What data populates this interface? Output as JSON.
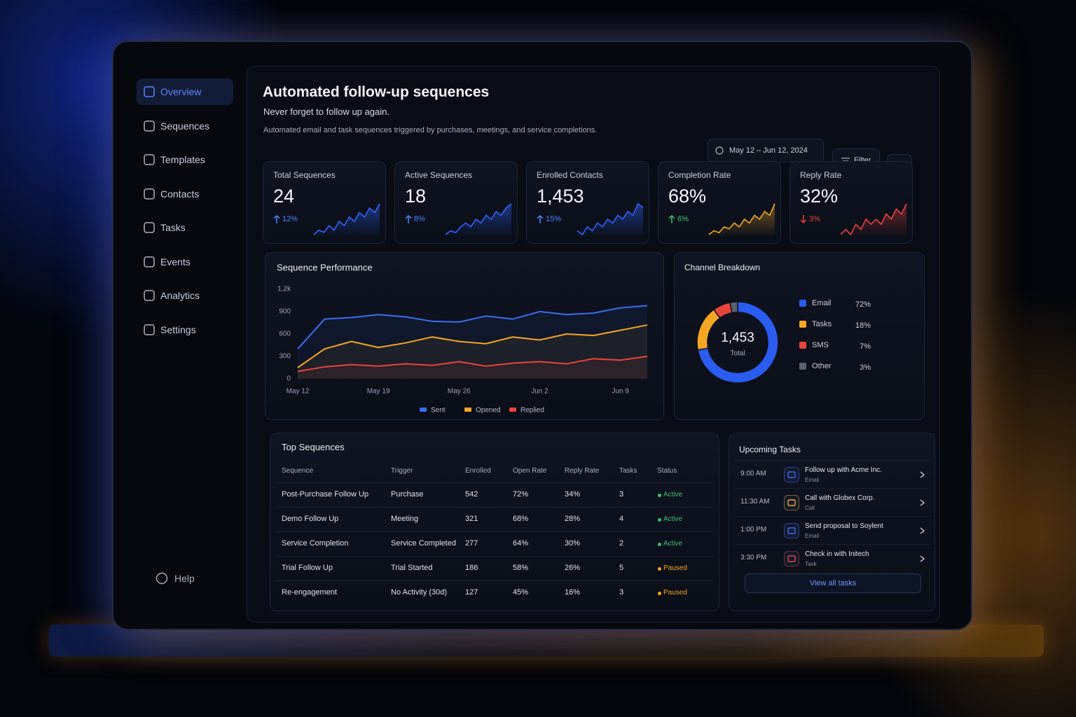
{
  "sidebar": {
    "items": [
      "Overview",
      "Sequences",
      "Templates",
      "Contacts",
      "Tasks",
      "Events",
      "Analytics",
      "Settings"
    ],
    "help": "Help"
  },
  "header": {
    "title": "Automated follow-up sequences",
    "subtitle": "Never forget to follow up again.",
    "description": "Automated email and task sequences triggered by purchases, meetings, and service completions.",
    "date_range": "May 12 – Jun 12, 2024",
    "filter": "Filter",
    "more": "..."
  },
  "kpis": [
    {
      "label": "Total Sequences",
      "value": "24",
      "change": "12%",
      "direction": "up",
      "color": "#2f63ff",
      "trend_color": "#4d86ff",
      "spark": [
        2,
        3,
        2.5,
        4,
        3,
        5,
        4,
        6,
        5,
        7,
        6,
        8,
        7,
        9
      ]
    },
    {
      "label": "Active Sequences",
      "value": "18",
      "change": "8%",
      "direction": "up",
      "color": "#2f63ff",
      "trend_color": "#4d86ff",
      "spark": [
        1,
        2,
        1.5,
        3,
        4,
        3,
        5,
        4,
        6,
        5,
        7,
        6,
        8,
        9
      ]
    },
    {
      "label": "Enrolled Contacts",
      "value": "1,453",
      "change": "15%",
      "direction": "up",
      "color": "#2f63ff",
      "trend_color": "#4d86ff",
      "spark": [
        2,
        1,
        3,
        2,
        4,
        3,
        5,
        4,
        6,
        5,
        7,
        6,
        9,
        8
      ]
    },
    {
      "label": "Completion Rate",
      "value": "68%",
      "change": "6%",
      "direction": "up",
      "color": "#f5a623",
      "trend_color": "#3fbf6f",
      "spark": [
        1,
        2,
        1.5,
        3,
        2.5,
        4,
        3,
        5,
        4,
        6,
        5,
        7,
        6,
        9
      ]
    },
    {
      "label": "Reply Rate",
      "value": "32%",
      "change": "3%",
      "direction": "down",
      "color": "#e8443a",
      "trend_color": "#e8443a",
      "spark": [
        2,
        3,
        2,
        4,
        3,
        5,
        4,
        5,
        4,
        6,
        5,
        7,
        6,
        8
      ]
    }
  ],
  "performance": {
    "type": "line",
    "title": "Sequence Performance",
    "categories": [
      "May 12",
      null,
      null,
      "May 19",
      null,
      null,
      "May 26",
      null,
      null,
      "Jun 2",
      null,
      null,
      "Jun 9",
      null
    ],
    "series": [
      {
        "name": "Sent",
        "color": "#3a6df0",
        "values": [
          400,
          800,
          820,
          860,
          830,
          770,
          760,
          840,
          800,
          900,
          860,
          880,
          950,
          980
        ]
      },
      {
        "name": "Opened",
        "color": "#f5a623",
        "values": [
          150,
          400,
          500,
          420,
          480,
          560,
          500,
          470,
          560,
          520,
          600,
          580,
          650,
          720
        ]
      },
      {
        "name": "Replied",
        "color": "#e8443a",
        "values": [
          100,
          160,
          190,
          170,
          200,
          180,
          230,
          170,
          210,
          230,
          200,
          270,
          250,
          300
        ]
      }
    ],
    "ylim": [
      0,
      1200
    ],
    "yticks": [
      0,
      300,
      600,
      900,
      {
        "value": 1200,
        "label": "1.2k"
      }
    ],
    "grid": false
  },
  "channels": {
    "type": "pie",
    "title": "Channel Breakdown",
    "center_value": "1,453",
    "center_label": "Total",
    "categories": [
      "Email",
      "Tasks",
      "SMS",
      "Other"
    ],
    "values": [
      72,
      18,
      7,
      3
    ],
    "value_labels": [
      "72%",
      "18%",
      "7%",
      "3%"
    ],
    "colors": [
      "#2a5cf0",
      "#f5a623",
      "#e8443a",
      "#5a6070"
    ]
  },
  "table": {
    "title": "Top Sequences",
    "columns": [
      "Sequence",
      "Trigger",
      "Enrolled",
      "Open Rate",
      "Reply Rate",
      "Tasks",
      "Status"
    ],
    "rows": [
      [
        "Post-Purchase Follow Up",
        "Purchase",
        "542",
        "72%",
        "34%",
        "3",
        "Active"
      ],
      [
        "Demo Follow Up",
        "Meeting",
        "321",
        "68%",
        "28%",
        "4",
        "Active"
      ],
      [
        "Service Completion",
        "Service Completed",
        "277",
        "64%",
        "30%",
        "2",
        "Active"
      ],
      [
        "Trial Follow Up",
        "Trial Started",
        "186",
        "58%",
        "26%",
        "5",
        "Paused"
      ],
      [
        "Re-engagement",
        "No Activity (30d)",
        "127",
        "45%",
        "16%",
        "3",
        "Paused"
      ]
    ],
    "status_colors": {
      "Active": "#3fbf6f",
      "Paused": "#f5a623"
    }
  },
  "tasks": {
    "title": "Upcoming Tasks",
    "items": [
      {
        "time": "9:00 AM",
        "title": "Follow up with Acme Inc.",
        "type": "Email",
        "color": "#3a6df0"
      },
      {
        "time": "11:30 AM",
        "title": "Call with Globex Corp.",
        "type": "Call",
        "color": "#f5a623"
      },
      {
        "time": "1:00 PM",
        "title": "Send proposal to Soylent",
        "type": "Email",
        "color": "#3a6df0"
      },
      {
        "time": "3:30 PM",
        "title": "Check in with Initech",
        "type": "Task",
        "color": "#e8443a"
      }
    ],
    "button": "View all tasks"
  }
}
